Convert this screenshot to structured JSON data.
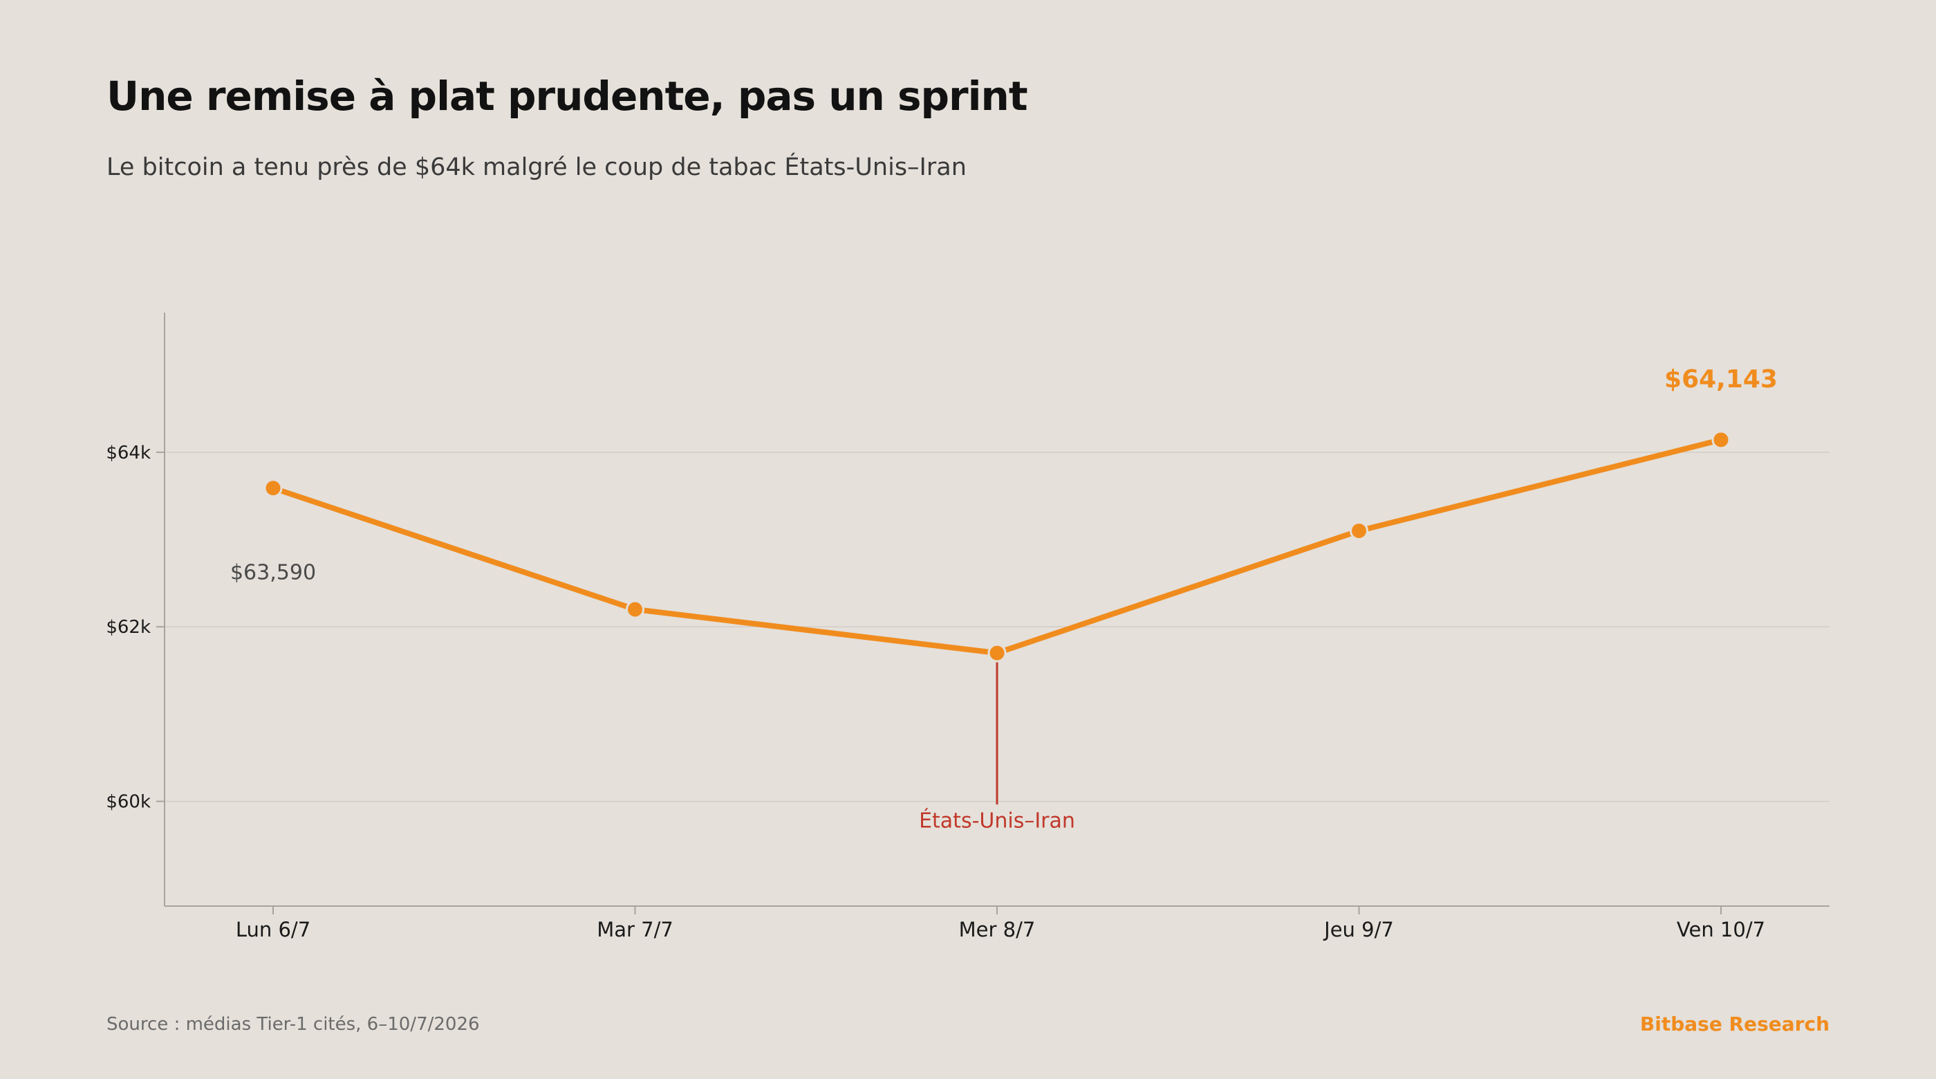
{
  "header": {
    "title": "Une remise à plat prudente, pas un sprint",
    "subtitle": "Le bitcoin a tenu près de $64k malgré le coup de tabac États-Unis–Iran"
  },
  "footer": {
    "source": "Source : médias Tier-1 cités, 6–10/7/2026",
    "brand": "Bitbase Research"
  },
  "colors": {
    "line": "#f08c1e",
    "annotation": "#c0392b",
    "grid": "#d2cdc6",
    "axis": "#a8a39d",
    "tick_text": "#1a1a1a",
    "label_text": "#4a4a4a",
    "background": "#e5e0da"
  },
  "chart_data": {
    "type": "line",
    "categories": [
      "Lun 6/7",
      "Mar 7/7",
      "Mer 8/7",
      "Jeu 9/7",
      "Ven 10/7"
    ],
    "series": [
      {
        "values": [
          63590,
          62200,
          61700,
          63100,
          64143
        ]
      }
    ],
    "ylim": [
      58800,
      65600
    ],
    "yticks": [
      60000,
      62000,
      64000
    ],
    "ytick_labels": [
      "$60k",
      "$62k",
      "$64k"
    ],
    "grid": true,
    "data_labels": [
      {
        "index": 0,
        "text": "$63,590"
      },
      {
        "index": 4,
        "text": "$64,143"
      }
    ],
    "annotations": [
      {
        "index": 2,
        "text": "États-Unis–Iran"
      }
    ]
  }
}
